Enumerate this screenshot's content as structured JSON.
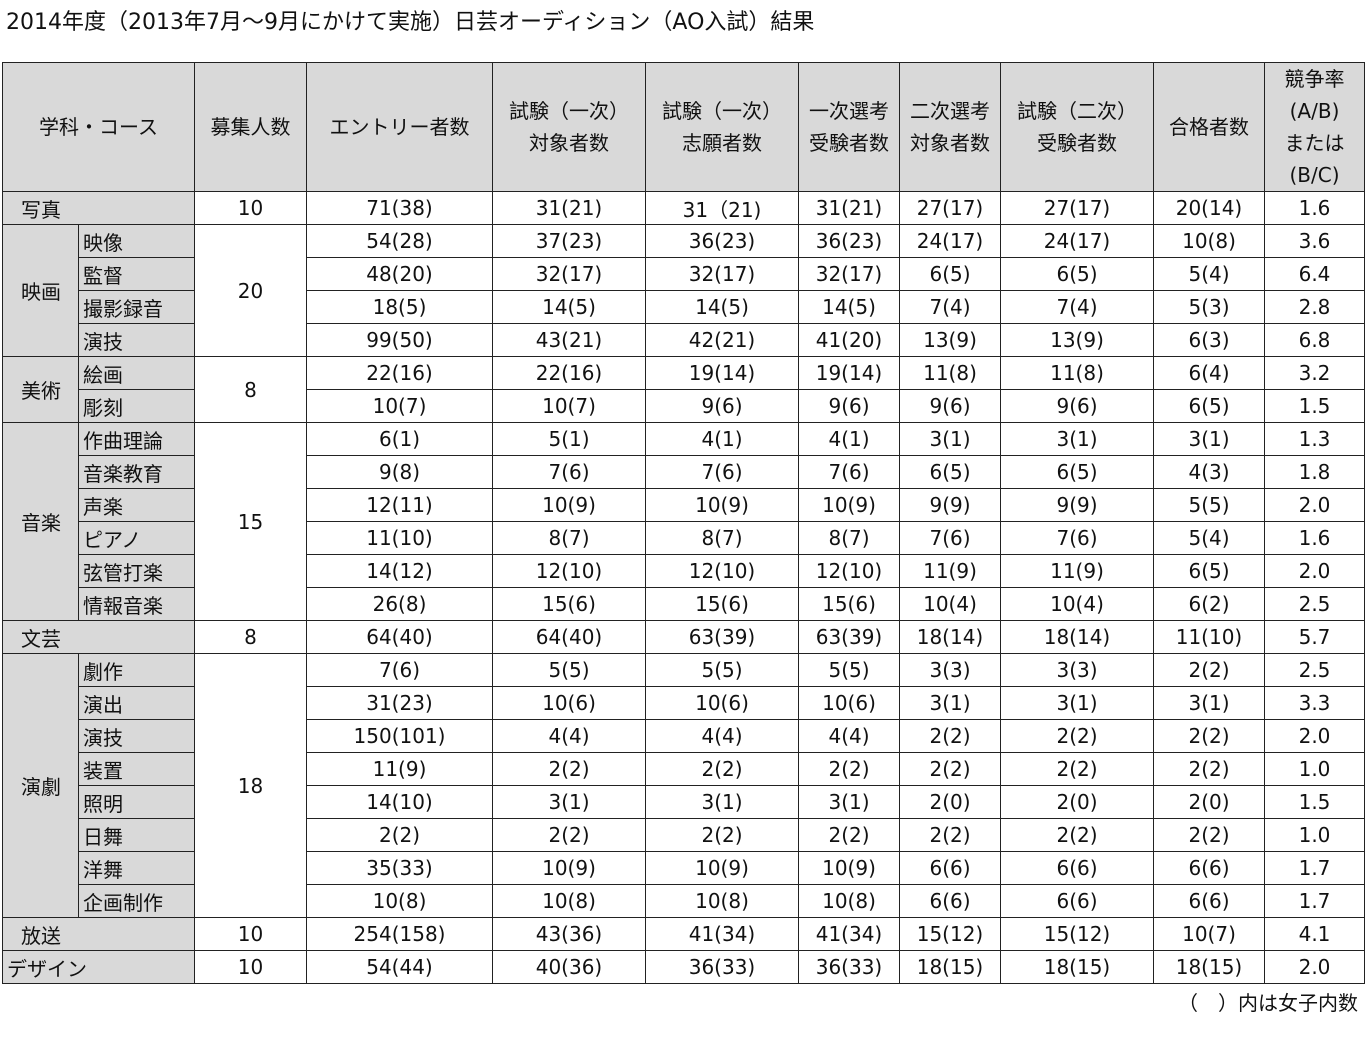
{
  "title": "2014年度（2013年7月〜9月にかけて実施）日芸オーディション（AO入試）結果",
  "note": "（　）内は女子内数",
  "headers": [
    [
      "学科・コース"
    ],
    [
      "募集人数"
    ],
    [
      "エントリー者数"
    ],
    [
      "試験（一次）",
      "対象者数"
    ],
    [
      "試験（一次）",
      "志願者数"
    ],
    [
      "一次選考",
      "受験者数"
    ],
    [
      "二次選考",
      "対象者数"
    ],
    [
      "試験（二次）",
      "受験者数"
    ],
    [
      "合格者数"
    ],
    [
      "競争率",
      "(A/B)",
      "または",
      "(B/C)"
    ]
  ],
  "groups": [
    {
      "dept": "写真",
      "quota": "10",
      "rows": [
        {
          "course": "",
          "values": [
            "71(38)",
            "31(21)",
            "31（21)",
            "31(21)",
            "27(17)",
            "27(17)",
            "20(14)",
            "1.6"
          ]
        }
      ]
    },
    {
      "dept": "映画",
      "quota": "20",
      "rows": [
        {
          "course": "映像",
          "values": [
            "54(28)",
            "37(23)",
            "36(23)",
            "36(23)",
            "24(17)",
            "24(17)",
            "10(8)",
            "3.6"
          ]
        },
        {
          "course": "監督",
          "values": [
            "48(20)",
            "32(17)",
            "32(17)",
            "32(17)",
            "6(5)",
            "6(5)",
            "5(4)",
            "6.4"
          ]
        },
        {
          "course": "撮影録音",
          "values": [
            "18(5)",
            "14(5)",
            "14(5)",
            "14(5)",
            "7(4)",
            "7(4)",
            "5(3)",
            "2.8"
          ]
        },
        {
          "course": "演技",
          "values": [
            "99(50)",
            "43(21)",
            "42(21)",
            "41(20)",
            "13(9)",
            "13(9)",
            "6(3)",
            "6.8"
          ]
        }
      ]
    },
    {
      "dept": "美術",
      "quota": "8",
      "rows": [
        {
          "course": "絵画",
          "values": [
            "22(16)",
            "22(16)",
            "19(14)",
            "19(14)",
            "11(8)",
            "11(8)",
            "6(4)",
            "3.2"
          ]
        },
        {
          "course": "彫刻",
          "values": [
            "10(7)",
            "10(7)",
            "9(6)",
            "9(6)",
            "9(6)",
            "9(6)",
            "6(5)",
            "1.5"
          ]
        }
      ]
    },
    {
      "dept": "音楽",
      "quota": "15",
      "rows": [
        {
          "course": "作曲理論",
          "values": [
            "6(1)",
            "5(1)",
            "4(1)",
            "4(1)",
            "3(1)",
            "3(1)",
            "3(1)",
            "1.3"
          ]
        },
        {
          "course": "音楽教育",
          "values": [
            "9(8)",
            "7(6)",
            "7(6)",
            "7(6)",
            "6(5)",
            "6(5)",
            "4(3)",
            "1.8"
          ]
        },
        {
          "course": "声楽",
          "values": [
            "12(11)",
            "10(9)",
            "10(9)",
            "10(9)",
            "9(9)",
            "9(9)",
            "5(5)",
            "2.0"
          ]
        },
        {
          "course": "ピアノ",
          "values": [
            "11(10)",
            "8(7)",
            "8(7)",
            "8(7)",
            "7(6)",
            "7(6)",
            "5(4)",
            "1.6"
          ]
        },
        {
          "course": "弦管打楽",
          "values": [
            "14(12)",
            "12(10)",
            "12(10)",
            "12(10)",
            "11(9)",
            "11(9)",
            "6(5)",
            "2.0"
          ]
        },
        {
          "course": "情報音楽",
          "values": [
            "26(8)",
            "15(6)",
            "15(6)",
            "15(6)",
            "10(4)",
            "10(4)",
            "6(2)",
            "2.5"
          ]
        }
      ]
    },
    {
      "dept": "文芸",
      "quota": "8",
      "rows": [
        {
          "course": "",
          "values": [
            "64(40)",
            "64(40)",
            "63(39)",
            "63(39)",
            "18(14)",
            "18(14)",
            "11(10)",
            "5.7"
          ]
        }
      ]
    },
    {
      "dept": "演劇",
      "quota": "18",
      "rows": [
        {
          "course": "劇作",
          "values": [
            "7(6)",
            "5(5)",
            "5(5)",
            "5(5)",
            "3(3)",
            "3(3)",
            "2(2)",
            "2.5"
          ]
        },
        {
          "course": "演出",
          "values": [
            "31(23)",
            "10(6)",
            "10(6)",
            "10(6)",
            "3(1)",
            "3(1)",
            "3(1)",
            "3.3"
          ]
        },
        {
          "course": "演技",
          "values": [
            "150(101)",
            "4(4)",
            "4(4)",
            "4(4)",
            "2(2)",
            "2(2)",
            "2(2)",
            "2.0"
          ]
        },
        {
          "course": "装置",
          "values": [
            "11(9)",
            "2(2)",
            "2(2)",
            "2(2)",
            "2(2)",
            "2(2)",
            "2(2)",
            "1.0"
          ]
        },
        {
          "course": "照明",
          "values": [
            "14(10)",
            "3(1)",
            "3(1)",
            "3(1)",
            "2(0)",
            "2(0)",
            "2(0)",
            "1.5"
          ]
        },
        {
          "course": "日舞",
          "values": [
            "2(2)",
            "2(2)",
            "2(2)",
            "2(2)",
            "2(2)",
            "2(2)",
            "2(2)",
            "1.0"
          ]
        },
        {
          "course": "洋舞",
          "values": [
            "35(33)",
            "10(9)",
            "10(9)",
            "10(9)",
            "6(6)",
            "6(6)",
            "6(6)",
            "1.7"
          ]
        },
        {
          "course": "企画制作",
          "values": [
            "10(8)",
            "10(8)",
            "10(8)",
            "10(8)",
            "6(6)",
            "6(6)",
            "6(6)",
            "1.7"
          ]
        }
      ]
    },
    {
      "dept": "放送",
      "quota": "10",
      "rows": [
        {
          "course": "",
          "values": [
            "254(158)",
            "43(36)",
            "41(34)",
            "41(34)",
            "15(12)",
            "15(12)",
            "10(7)",
            "4.1"
          ]
        }
      ]
    },
    {
      "dept": "デザイン",
      "quota": "10",
      "flush": true,
      "rows": [
        {
          "course": "",
          "values": [
            "54(44)",
            "40(36)",
            "36(33)",
            "36(33)",
            "18(15)",
            "18(15)",
            "18(15)",
            "2.0"
          ]
        }
      ]
    }
  ]
}
